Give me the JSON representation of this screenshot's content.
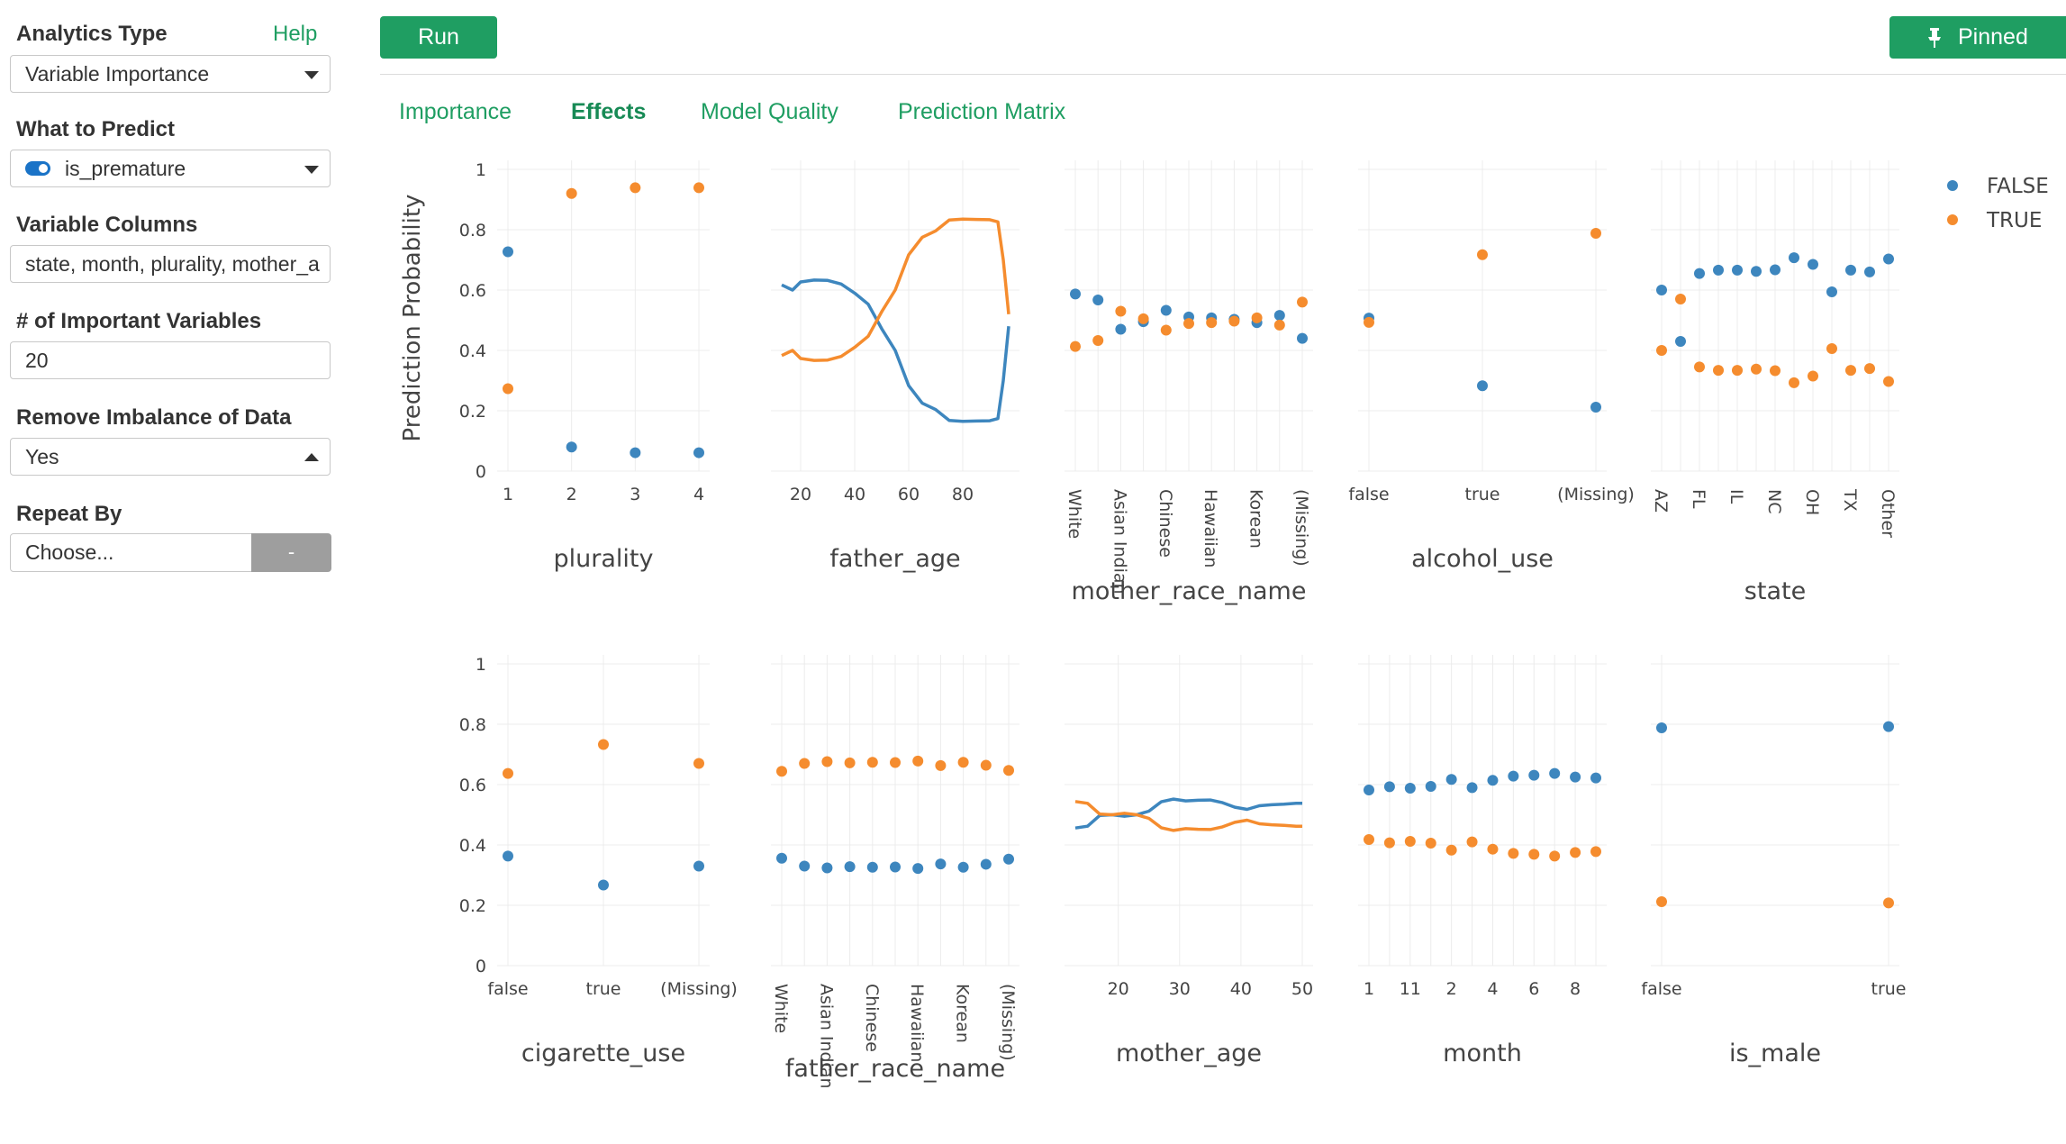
{
  "sidebar": {
    "analytics_type_label": "Analytics Type",
    "help_link": "Help",
    "analytics_type_value": "Variable Importance",
    "what_to_predict_label": "What to Predict",
    "what_to_predict_value": "is_premature",
    "variable_columns_label": "Variable Columns",
    "variable_columns_value": "state, month, plurality, mother_a",
    "important_vars_label": "# of Important Variables",
    "important_vars_value": "20",
    "imbalance_label": "Remove Imbalance of Data",
    "imbalance_value": "Yes",
    "repeat_by_label": "Repeat By",
    "repeat_by_placeholder": "Choose...",
    "repeat_by_clear": "-"
  },
  "toolbar": {
    "run_label": "Run",
    "pinned_label": "Pinned",
    "pin_icon": "pin-icon"
  },
  "tabs": [
    {
      "label": "Importance",
      "active": false
    },
    {
      "label": "Effects",
      "active": true
    },
    {
      "label": "Model Quality",
      "active": false
    },
    {
      "label": "Prediction Matrix",
      "active": false
    }
  ],
  "colors": {
    "FALSE": "#3d86be",
    "TRUE": "#f58c2e",
    "accent": "#1f9e62"
  },
  "legend": [
    {
      "name": "FALSE"
    },
    {
      "name": "TRUE"
    }
  ],
  "y_title": "Prediction Probability",
  "y_ticks": [
    "1",
    "0.8",
    "0.6",
    "0.4",
    "0.2",
    "0"
  ],
  "chart_data": [
    {
      "type": "scatter",
      "title": "plurality",
      "ylim": [
        0,
        1
      ],
      "categories": [
        "1",
        "2",
        "3",
        "4"
      ],
      "series": [
        {
          "name": "FALSE",
          "values": [
            0.727,
            0.08,
            0.061,
            0.061
          ]
        },
        {
          "name": "TRUE",
          "values": [
            0.273,
            0.92,
            0.939,
            0.939
          ]
        }
      ]
    },
    {
      "type": "line",
      "title": "father_age",
      "ylim": [
        0,
        1
      ],
      "xlim": [
        13,
        97
      ],
      "x_ticks": [
        20,
        40,
        60,
        80
      ],
      "x": [
        13,
        17,
        20,
        25,
        30,
        35,
        40,
        45,
        50,
        55,
        60,
        65,
        70,
        75,
        80,
        85,
        90,
        93,
        95,
        97
      ],
      "series": [
        {
          "name": "FALSE",
          "values": [
            0.617,
            0.6,
            0.627,
            0.633,
            0.632,
            0.62,
            0.59,
            0.553,
            0.472,
            0.4,
            0.283,
            0.225,
            0.204,
            0.168,
            0.165,
            0.166,
            0.167,
            0.174,
            0.3,
            0.48
          ]
        },
        {
          "name": "TRUE",
          "values": [
            0.383,
            0.4,
            0.373,
            0.367,
            0.368,
            0.38,
            0.41,
            0.447,
            0.528,
            0.6,
            0.717,
            0.775,
            0.796,
            0.832,
            0.835,
            0.834,
            0.833,
            0.826,
            0.7,
            0.52
          ]
        }
      ]
    },
    {
      "type": "scatter",
      "title": "mother_race_name",
      "ylim": [
        0,
        1
      ],
      "rotated_ticks": true,
      "categories": [
        "White",
        "",
        "Asian Indian",
        "",
        "Chinese",
        "",
        "Hawaiian",
        "",
        "Korean",
        "",
        "(Missing)"
      ],
      "tick_labels": [
        "White",
        "Asian Indian",
        "Chinese",
        "Hawaiian",
        "Korean",
        "(Missing)"
      ],
      "series": [
        {
          "name": "FALSE",
          "values": [
            0.587,
            0.567,
            0.47,
            0.495,
            0.533,
            0.511,
            0.508,
            0.503,
            0.492,
            0.516,
            0.44
          ]
        },
        {
          "name": "TRUE",
          "values": [
            0.413,
            0.433,
            0.53,
            0.505,
            0.467,
            0.489,
            0.492,
            0.497,
            0.508,
            0.484,
            0.56
          ]
        }
      ]
    },
    {
      "type": "scatter",
      "title": "alcohol_use",
      "ylim": [
        0,
        1
      ],
      "categories": [
        "false",
        "true",
        "(Missing)"
      ],
      "series": [
        {
          "name": "FALSE",
          "values": [
            0.507,
            0.283,
            0.212
          ]
        },
        {
          "name": "TRUE",
          "values": [
            0.493,
            0.717,
            0.788
          ]
        }
      ]
    },
    {
      "type": "scatter",
      "title": "state",
      "ylim": [
        0,
        1
      ],
      "rotated_ticks": true,
      "categories": [
        "AZ",
        "",
        "FL",
        "",
        "IL",
        "",
        "NC",
        "",
        "OH",
        "",
        "TX",
        "",
        "Other"
      ],
      "tick_labels": [
        "AZ",
        "FL",
        "IL",
        "NC",
        "OH",
        "TX",
        "Other"
      ],
      "series": [
        {
          "name": "FALSE",
          "values": [
            0.6,
            0.43,
            0.655,
            0.666,
            0.666,
            0.662,
            0.667,
            0.707,
            0.685,
            0.594,
            0.666,
            0.66,
            0.703
          ]
        },
        {
          "name": "TRUE",
          "values": [
            0.4,
            0.57,
            0.345,
            0.334,
            0.334,
            0.338,
            0.333,
            0.293,
            0.315,
            0.406,
            0.334,
            0.34,
            0.297
          ]
        }
      ]
    },
    {
      "type": "scatter",
      "title": "cigarette_use",
      "ylim": [
        0,
        1
      ],
      "categories": [
        "false",
        "true",
        "(Missing)"
      ],
      "series": [
        {
          "name": "FALSE",
          "values": [
            0.363,
            0.267,
            0.33
          ]
        },
        {
          "name": "TRUE",
          "values": [
            0.637,
            0.733,
            0.67
          ]
        }
      ]
    },
    {
      "type": "scatter",
      "title": "father_race_name",
      "ylim": [
        0,
        1
      ],
      "rotated_ticks": true,
      "categories": [
        "White",
        "",
        "Asian Indian",
        "",
        "Chinese",
        "",
        "Hawaiian",
        "",
        "Korean",
        "",
        "(Missing)"
      ],
      "tick_labels": [
        "White",
        "Asian Indian",
        "Chinese",
        "Hawaiian",
        "Korean",
        "(Missing)"
      ],
      "series": [
        {
          "name": "FALSE",
          "values": [
            0.356,
            0.33,
            0.324,
            0.328,
            0.326,
            0.327,
            0.322,
            0.337,
            0.326,
            0.336,
            0.353
          ]
        },
        {
          "name": "TRUE",
          "values": [
            0.644,
            0.67,
            0.676,
            0.672,
            0.674,
            0.673,
            0.678,
            0.663,
            0.674,
            0.664,
            0.647
          ]
        }
      ]
    },
    {
      "type": "line",
      "title": "mother_age",
      "ylim": [
        0,
        1
      ],
      "xlim": [
        13,
        50
      ],
      "x_ticks": [
        20,
        30,
        40,
        50
      ],
      "x": [
        13,
        15,
        17,
        19,
        21,
        23,
        25,
        27,
        29,
        31,
        33,
        35,
        37,
        39,
        41,
        43,
        45,
        47,
        49,
        50
      ],
      "series": [
        {
          "name": "FALSE",
          "values": [
            0.456,
            0.462,
            0.498,
            0.5,
            0.495,
            0.5,
            0.512,
            0.543,
            0.552,
            0.546,
            0.548,
            0.549,
            0.54,
            0.525,
            0.518,
            0.53,
            0.533,
            0.535,
            0.538,
            0.538
          ]
        },
        {
          "name": "TRUE",
          "values": [
            0.544,
            0.538,
            0.502,
            0.5,
            0.505,
            0.5,
            0.488,
            0.457,
            0.448,
            0.454,
            0.452,
            0.451,
            0.46,
            0.475,
            0.482,
            0.47,
            0.467,
            0.465,
            0.462,
            0.462
          ]
        }
      ]
    },
    {
      "type": "scatter",
      "title": "month",
      "ylim": [
        0,
        1
      ],
      "categories": [
        "1",
        "",
        "11",
        "",
        "2",
        "",
        "4",
        "",
        "6",
        "",
        "8",
        ""
      ],
      "tick_labels": [
        "1",
        "11",
        "2",
        "4",
        "6",
        "8"
      ],
      "series": [
        {
          "name": "FALSE",
          "values": [
            0.582,
            0.593,
            0.588,
            0.594,
            0.617,
            0.59,
            0.614,
            0.628,
            0.631,
            0.637,
            0.625,
            0.622
          ]
        },
        {
          "name": "TRUE",
          "values": [
            0.418,
            0.407,
            0.412,
            0.406,
            0.383,
            0.41,
            0.386,
            0.372,
            0.369,
            0.363,
            0.375,
            0.378
          ]
        }
      ]
    },
    {
      "type": "scatter",
      "title": "is_male",
      "ylim": [
        0,
        1
      ],
      "categories": [
        "false",
        "true"
      ],
      "series": [
        {
          "name": "FALSE",
          "values": [
            0.788,
            0.792
          ]
        },
        {
          "name": "TRUE",
          "values": [
            0.212,
            0.208
          ]
        }
      ]
    }
  ]
}
